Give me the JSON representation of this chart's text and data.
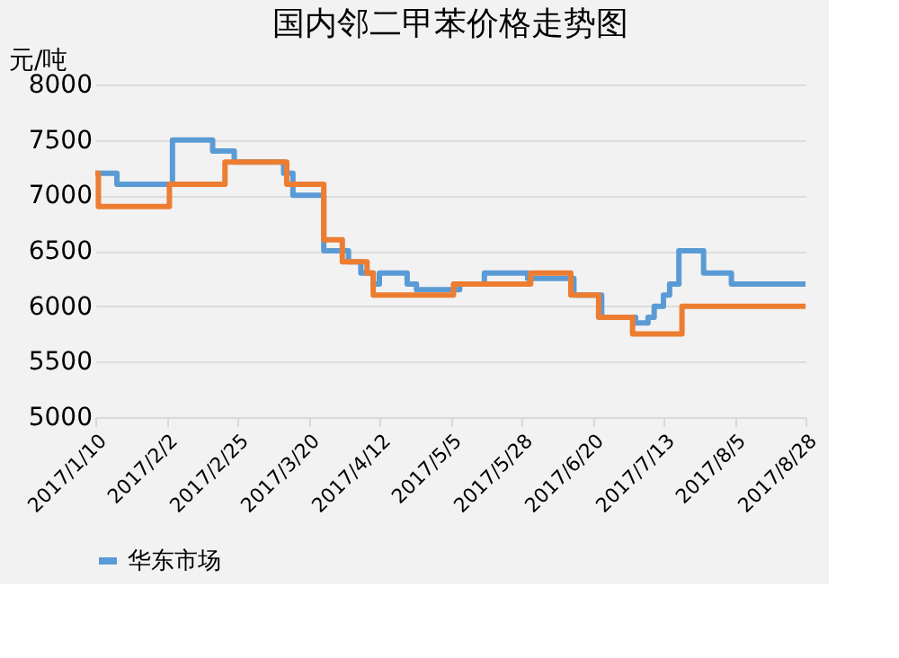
{
  "chart_data": {
    "type": "step",
    "title": "国内邻二甲苯价格走势图",
    "ylabel": "元/吨",
    "xlim": [
      "2017-01-10",
      "2017-08-28"
    ],
    "xticks": [
      {
        "value": "2017-01-10",
        "label": "2017/1/10"
      },
      {
        "value": "2017-02-02",
        "label": "2017/2/2"
      },
      {
        "value": "2017-02-25",
        "label": "2017/2/25"
      },
      {
        "value": "2017-03-20",
        "label": "2017/3/20"
      },
      {
        "value": "2017-04-12",
        "label": "2017/4/12"
      },
      {
        "value": "2017-05-05",
        "label": "2017/5/5"
      },
      {
        "value": "2017-05-28",
        "label": "2017/5/28"
      },
      {
        "value": "2017-06-20",
        "label": "2017/6/20"
      },
      {
        "value": "2017-07-13",
        "label": "2017/7/13"
      },
      {
        "value": "2017-08-05",
        "label": "2017/8/5"
      },
      {
        "value": "2017-08-28",
        "label": "2017/8/28"
      }
    ],
    "ylim": [
      5000,
      8000
    ],
    "yticks": [
      5000,
      5500,
      6000,
      6500,
      7000,
      7500,
      8000
    ],
    "grid": "y",
    "legend": "bottom",
    "line_style": "solid",
    "marker": "none",
    "series": [
      {
        "name": "华东市场",
        "color": "#5b9bd5",
        "x": [
          "2017-01-10",
          "2017-01-17",
          "2017-02-04",
          "2017-02-17",
          "2017-02-24",
          "2017-03-12",
          "2017-03-15",
          "2017-03-25",
          "2017-04-02",
          "2017-04-06",
          "2017-04-10",
          "2017-04-12",
          "2017-04-21",
          "2017-04-24",
          "2017-05-08",
          "2017-05-16",
          "2017-05-30",
          "2017-06-14",
          "2017-06-23",
          "2017-07-04",
          "2017-07-08",
          "2017-07-10",
          "2017-07-13",
          "2017-07-15",
          "2017-07-18",
          "2017-07-26",
          "2017-08-04",
          "2017-08-28"
        ],
        "values": [
          7200,
          7100,
          7500,
          7400,
          7300,
          7200,
          7000,
          6500,
          6400,
          6300,
          6200,
          6300,
          6200,
          6150,
          6200,
          6300,
          6250,
          6100,
          5900,
          5850,
          5900,
          6000,
          6100,
          6200,
          6500,
          6300,
          6200,
          6200
        ]
      },
      {
        "color": "#ed7d31",
        "x": [
          "2017-01-10",
          "2017-01-11",
          "2017-02-03",
          "2017-02-21",
          "2017-03-13",
          "2017-03-25",
          "2017-03-31",
          "2017-04-08",
          "2017-04-10",
          "2017-05-06",
          "2017-05-31",
          "2017-06-13",
          "2017-06-22",
          "2017-07-03",
          "2017-07-19",
          "2017-08-28"
        ],
        "values": [
          7200,
          6900,
          7100,
          7300,
          7100,
          6600,
          6400,
          6300,
          6100,
          6200,
          6300,
          6100,
          5900,
          5750,
          6000,
          6000
        ]
      }
    ]
  }
}
